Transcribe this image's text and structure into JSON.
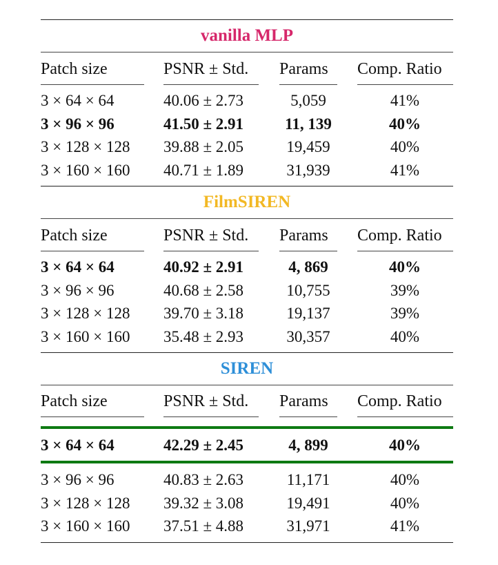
{
  "headers": [
    "Patch size",
    "PSNR ± Std.",
    "Params",
    "Comp. Ratio"
  ],
  "sections": [
    {
      "title": "vanilla MLP",
      "title_color": "#d6286b",
      "rows": [
        {
          "patch": "3 × 64 × 64",
          "psnr": "40.06 ± 2.73",
          "params": "5,059",
          "ratio": "41%",
          "bold": false
        },
        {
          "patch": "3 × 96 × 96",
          "psnr": "41.50 ± 2.91",
          "params": "11, 139",
          "ratio": "40%",
          "bold": true
        },
        {
          "patch": "3 × 128 × 128",
          "psnr": "39.88 ± 2.05",
          "params": "19,459",
          "ratio": "40%",
          "bold": false
        },
        {
          "patch": "3 × 160 × 160",
          "psnr": "40.71 ± 1.89",
          "params": "31,939",
          "ratio": "41%",
          "bold": false
        }
      ]
    },
    {
      "title": "FilmSIREN",
      "title_color": "#f2b824",
      "rows": [
        {
          "patch": "3 × 64 × 64",
          "psnr": "40.92 ± 2.91",
          "params": "4, 869",
          "ratio": "40%",
          "bold": true
        },
        {
          "patch": "3 × 96 × 96",
          "psnr": "40.68 ± 2.58",
          "params": "10,755",
          "ratio": "39%",
          "bold": false
        },
        {
          "patch": "3 × 128 × 128",
          "psnr": "39.70 ± 3.18",
          "params": "19,137",
          "ratio": "39%",
          "bold": false
        },
        {
          "patch": "3 × 160 × 160",
          "psnr": "35.48 ± 2.93",
          "params": "30,357",
          "ratio": "40%",
          "bold": false
        }
      ]
    },
    {
      "title": "SIREN",
      "title_color": "#2e8fd8",
      "highlight_color": "#0d7a12",
      "rows": [
        {
          "patch": "3 × 64 × 64",
          "psnr": "42.29 ± 2.45",
          "params": "4, 899",
          "ratio": "40%",
          "bold": true
        },
        {
          "patch": "3 × 96 × 96",
          "psnr": "40.83 ± 2.63",
          "params": "11,171",
          "ratio": "40%",
          "bold": false
        },
        {
          "patch": "3 × 128 × 128",
          "psnr": "39.32 ± 3.08",
          "params": "19,491",
          "ratio": "40%",
          "bold": false
        },
        {
          "patch": "3 × 160 × 160",
          "psnr": "37.51 ± 4.88",
          "params": "31,971",
          "ratio": "41%",
          "bold": false
        }
      ]
    }
  ]
}
